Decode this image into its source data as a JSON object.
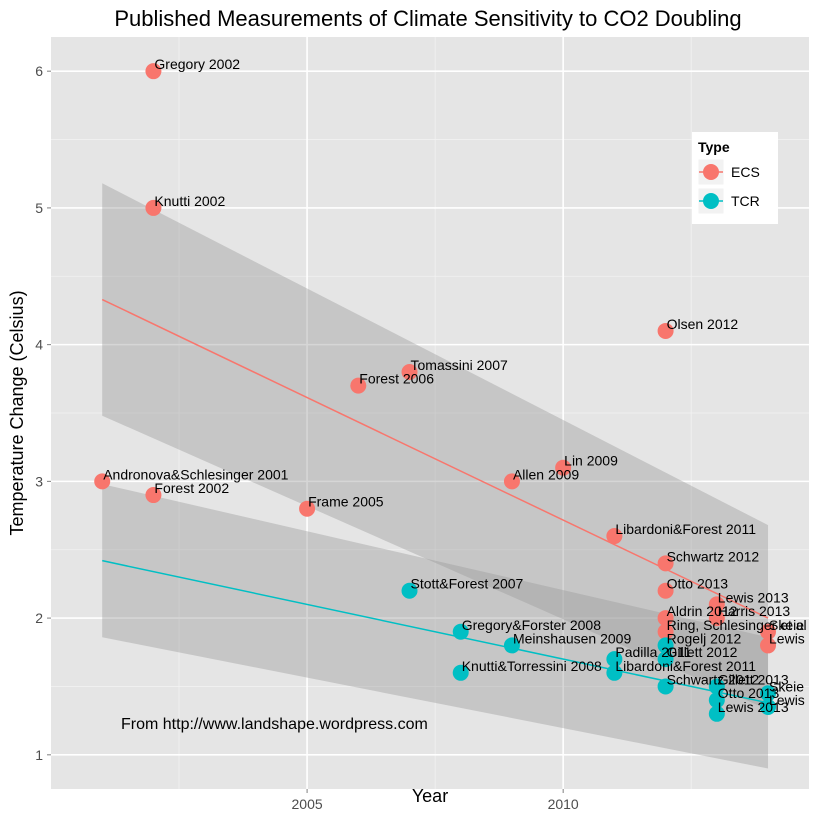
{
  "chart_data": {
    "type": "scatter",
    "title": "Published Measurements of Climate Sensitivity to CO2 Doubling",
    "xlabel": "Year",
    "ylabel": "Temperature Change (Celsius)",
    "xlim": [
      2000,
      2014.8
    ],
    "ylim": [
      0.75,
      6.25
    ],
    "x_ticks": [
      2005,
      2010
    ],
    "y_ticks": [
      1,
      2,
      3,
      4,
      5,
      6
    ],
    "grid": true,
    "legend": {
      "title": "Type",
      "position": "top-right",
      "entries": [
        {
          "name": "ECS",
          "color": "#f8766d"
        },
        {
          "name": "TCR",
          "color": "#00bfc4"
        }
      ]
    },
    "annotation": "From http://www.landshape.wordpress.com",
    "series": [
      {
        "name": "ECS",
        "color": "#f8766d",
        "points": [
          {
            "label": "Gregory 2002",
            "x": 2002,
            "y": 6.0
          },
          {
            "label": "Knutti 2002",
            "x": 2002,
            "y": 5.0
          },
          {
            "label": "Andronova&Schlesinger 2001",
            "x": 2001,
            "y": 3.0
          },
          {
            "label": "Forest 2002",
            "x": 2002,
            "y": 2.9
          },
          {
            "label": "Frame 2005",
            "x": 2005,
            "y": 2.8
          },
          {
            "label": "Forest 2006",
            "x": 2006,
            "y": 3.7
          },
          {
            "label": "Tomassini 2007",
            "x": 2007,
            "y": 3.8
          },
          {
            "label": "Allen 2009",
            "x": 2009,
            "y": 3.0
          },
          {
            "label": "Lin 2009",
            "x": 2010,
            "y": 3.1
          },
          {
            "label": "Olsen 2012",
            "x": 2012,
            "y": 4.1
          },
          {
            "label": "Libardoni&Forest 2011",
            "x": 2011,
            "y": 2.6
          },
          {
            "label": "Schwartz 2012",
            "x": 2012,
            "y": 2.4
          },
          {
            "label": "Otto 2013",
            "x": 2012,
            "y": 2.2
          },
          {
            "label": "Lewis 2013",
            "x": 2013,
            "y": 2.1
          },
          {
            "label": "Aldrin 2012",
            "x": 2012,
            "y": 2.0
          },
          {
            "label": "Harris 2013",
            "x": 2013,
            "y": 2.0
          },
          {
            "label": "Ring, Schlesinger et al",
            "x": 2012,
            "y": 1.9
          },
          {
            "label": "Skeie",
            "x": 2014,
            "y": 1.9
          },
          {
            "label": "Lewis",
            "x": 2014,
            "y": 1.8
          }
        ]
      },
      {
        "name": "TCR",
        "color": "#00bfc4",
        "points": [
          {
            "label": "Stott&Forest 2007",
            "x": 2007,
            "y": 2.2
          },
          {
            "label": "Gregory&Forster 2008",
            "x": 2008,
            "y": 1.9
          },
          {
            "label": "Meinshausen 2009",
            "x": 2009,
            "y": 1.8
          },
          {
            "label": "Knutti&Torressini 2008",
            "x": 2008,
            "y": 1.6
          },
          {
            "label": "Rogelj 2012",
            "x": 2012,
            "y": 1.8
          },
          {
            "label": "Padilla 2011",
            "x": 2011,
            "y": 1.7
          },
          {
            "label": "Gillett 2012",
            "x": 2012,
            "y": 1.7
          },
          {
            "label": "Libardoni&Forest 2011",
            "x": 2011,
            "y": 1.6
          },
          {
            "label": "Schwartz 2012",
            "x": 2012,
            "y": 1.5
          },
          {
            "label": "Gillett 2013",
            "x": 2013,
            "y": 1.5
          },
          {
            "label": "Otto 2013",
            "x": 2013,
            "y": 1.4
          },
          {
            "label": "Skeie",
            "x": 2014,
            "y": 1.45
          },
          {
            "label": "Lewis",
            "x": 2014,
            "y": 1.35
          },
          {
            "label": "Lewis 2013",
            "x": 2013,
            "y": 1.3
          }
        ]
      }
    ],
    "trend_lines": [
      {
        "series": "ECS",
        "color": "#f8766d",
        "x": [
          2001,
          2014
        ],
        "y": [
          4.33,
          2.0
        ],
        "ci_lower": [
          3.48,
          1.33
        ],
        "ci_upper": [
          5.18,
          2.68
        ]
      },
      {
        "series": "TCR",
        "color": "#00bfc4",
        "x": [
          2001,
          2014
        ],
        "y": [
          2.42,
          1.38
        ],
        "ci_lower": [
          1.86,
          0.9
        ],
        "ci_upper": [
          2.98,
          1.86
        ]
      }
    ]
  }
}
